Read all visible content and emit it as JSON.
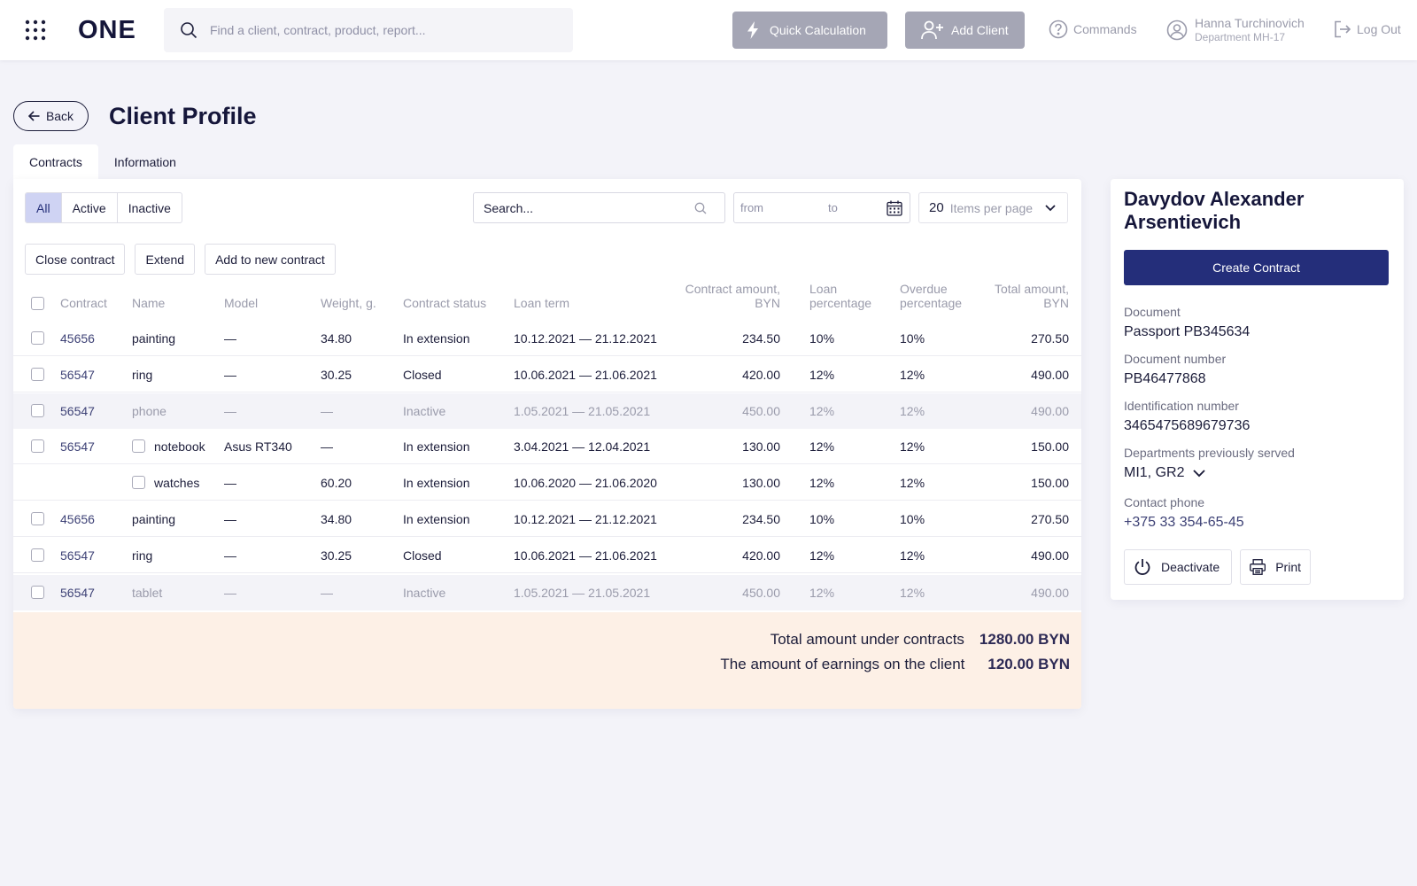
{
  "header": {
    "logo": "ONE",
    "search_placeholder": "Find a client, contract, product, report...",
    "quick_calc_label": "Quick Calculation",
    "add_client_label": "Add Client",
    "commands_label": "Commands",
    "user_name": "Hanna Turchinovich",
    "user_dept": "Department MH-17",
    "logout_label": "Log Out"
  },
  "page": {
    "back_label": "Back",
    "title": "Client Profile",
    "tabs": [
      {
        "label": "Contracts",
        "active": true
      },
      {
        "label": "Information",
        "active": false
      }
    ]
  },
  "filters": {
    "segments": [
      {
        "label": "All",
        "selected": true
      },
      {
        "label": "Active",
        "selected": false
      },
      {
        "label": "Inactive",
        "selected": false
      }
    ],
    "search_placeholder": "Search...",
    "date_from_placeholder": "from",
    "date_to_placeholder": "to",
    "items_per_page_value": "20",
    "items_per_page_label": "Items per page"
  },
  "actions": [
    "Close contract",
    "Extend",
    "Add to new contract"
  ],
  "table": {
    "columns": {
      "contract": "Contract",
      "name": "Name",
      "model": "Model",
      "weight": "Weight, g.",
      "status": "Contract status",
      "term": "Loan term",
      "amount": [
        "Contract amount,",
        "BYN"
      ],
      "loan_pct": [
        "Loan",
        "percentage"
      ],
      "overdue_pct": [
        "Overdue",
        "percentage"
      ],
      "total": [
        "Total amount,",
        "BYN"
      ]
    },
    "rows": [
      {
        "contract": "45656",
        "name": "painting",
        "model": "—",
        "weight": "34.80",
        "status": "In extension",
        "term": "10.12.2021 — 21.12.2021",
        "amount": "234.50",
        "loan_pct": "10%",
        "overdue_pct": "10%",
        "total": "270.50",
        "inactive": false
      },
      {
        "contract": "56547",
        "name": "ring",
        "model": "—",
        "weight": "30.25",
        "status": "Closed",
        "term": "10.06.2021 — 21.06.2021",
        "amount": "420.00",
        "loan_pct": "12%",
        "overdue_pct": "12%",
        "total": "490.00",
        "inactive": false
      },
      {
        "contract": "56547",
        "name": "phone",
        "model": "—",
        "weight": "—",
        "status": "Inactive",
        "term": "1.05.2021 — 21.05.2021",
        "amount": "450.00",
        "loan_pct": "12%",
        "overdue_pct": "12%",
        "total": "490.00",
        "inactive": true
      },
      {
        "contract": "56547",
        "name": "notebook",
        "model": "Asus RT340",
        "weight": "—",
        "status": "In extension",
        "term": "3.04.2021 — 12.04.2021",
        "amount": "130.00",
        "loan_pct": "12%",
        "overdue_pct": "12%",
        "total": "150.00",
        "inactive": false,
        "item_checkbox": true
      },
      {
        "contract": "",
        "name": "watches",
        "model": "—",
        "weight": "60.20",
        "status": "In extension",
        "term": "10.06.2020 — 21.06.2020",
        "amount": "130.00",
        "loan_pct": "12%",
        "overdue_pct": "12%",
        "total": "150.00",
        "inactive": false,
        "item_checkbox": true,
        "sub_row": true
      },
      {
        "contract": "45656",
        "name": "painting",
        "model": "—",
        "weight": "34.80",
        "status": "In extension",
        "term": "10.12.2021 — 21.12.2021",
        "amount": "234.50",
        "loan_pct": "10%",
        "overdue_pct": "10%",
        "total": "270.50",
        "inactive": false
      },
      {
        "contract": "56547",
        "name": "ring",
        "model": "—",
        "weight": "30.25",
        "status": "Closed",
        "term": "10.06.2021 — 21.06.2021",
        "amount": "420.00",
        "loan_pct": "12%",
        "overdue_pct": "12%",
        "total": "490.00",
        "inactive": false
      },
      {
        "contract": "56547",
        "name": "tablet",
        "model": "—",
        "weight": "—",
        "status": "Inactive",
        "term": "1.05.2021 — 21.05.2021",
        "amount": "450.00",
        "loan_pct": "12%",
        "overdue_pct": "12%",
        "total": "490.00",
        "inactive": true
      }
    ]
  },
  "totals": {
    "under_contracts_label": "Total amount under contracts",
    "under_contracts_value": "1280.00 BYN",
    "earnings_label": "The amount of earnings on the client",
    "earnings_value": "120.00 BYN"
  },
  "client": {
    "name": "Davydov Alexander Arsentievich",
    "create_contract_label": "Create Contract",
    "document_label": "Document",
    "document_value": "Passport PB345634",
    "doc_number_label": "Document number",
    "doc_number_value": "PB46477868",
    "id_number_label": "Identification number",
    "id_number_value": "3465475689679736",
    "departments_label": "Departments previously served",
    "departments_value": "MI1, GR2",
    "phone_label": "Contact phone",
    "phone_value": "+375 33 354-65-45",
    "deactivate_label": "Deactivate",
    "print_label": "Print"
  },
  "colors": {
    "primary": "#242e7a",
    "contract_link": "#3e4276",
    "segment_selected_bg": "#cfd3f3",
    "totals_bg": "#fdf0e6",
    "topbar_button": "#a5a6b5"
  },
  "icons": [
    "grid-icon",
    "search-icon",
    "lightning-icon",
    "add-user-icon",
    "help-icon",
    "user-icon",
    "logout-icon",
    "arrow-left-icon",
    "calendar-icon",
    "chevron-down-icon",
    "power-icon",
    "printer-icon"
  ]
}
